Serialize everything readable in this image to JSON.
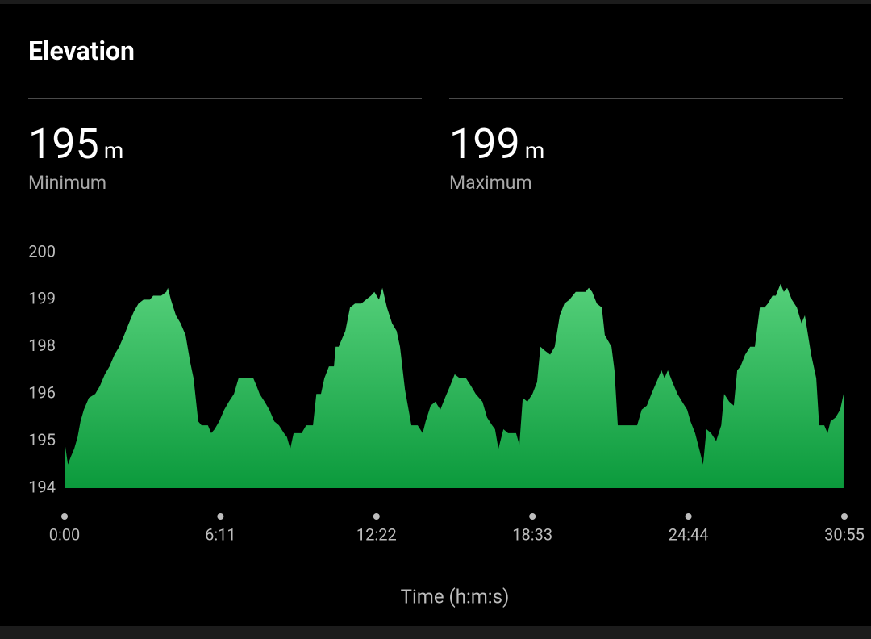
{
  "header": {
    "title": "Elevation"
  },
  "stats": [
    {
      "value": 195,
      "unit": "m",
      "label": "Minimum"
    },
    {
      "value": 199,
      "unit": "m",
      "label": "Maximum"
    }
  ],
  "chart_data": {
    "type": "area",
    "x_label": "Time (h:m:s)",
    "color": "#55d07a",
    "color_bottom": "#0b9a3c",
    "xlim": [
      0,
      1855
    ],
    "xticks": [
      {
        "value": 0,
        "label": "0:00"
      },
      {
        "value": 371,
        "label": "6:11"
      },
      {
        "value": 742,
        "label": "12:22"
      },
      {
        "value": 1113,
        "label": "18:33"
      },
      {
        "value": 1484,
        "label": "24:44"
      },
      {
        "value": 1855,
        "label": "30:55"
      }
    ],
    "ylim": [
      194,
      200
    ],
    "yticks": [
      194,
      {
        "value": 195.2,
        "label": "195"
      },
      {
        "value": 196.4,
        "label": "196"
      },
      {
        "value": 197.6,
        "label": "198"
      },
      {
        "value": 198.8,
        "label": "199"
      },
      200
    ],
    "x": [
      0,
      8,
      15,
      23,
      31,
      38,
      46,
      58,
      73,
      84,
      96,
      107,
      119,
      130,
      142,
      153,
      165,
      176,
      188,
      203,
      211,
      230,
      242,
      246,
      253,
      265,
      276,
      288,
      299,
      307,
      318,
      326,
      341,
      349,
      357,
      368,
      380,
      391,
      403,
      414,
      422,
      449,
      457,
      464,
      476,
      487,
      499,
      510,
      522,
      529,
      537,
      545,
      564,
      575,
      591,
      599,
      610,
      618,
      629,
      641,
      645,
      652,
      668,
      679,
      691,
      706,
      717,
      729,
      737,
      748,
      756,
      767,
      779,
      790,
      798,
      810,
      825,
      840,
      852,
      859,
      871,
      882,
      894,
      905,
      917,
      928,
      940,
      955,
      967,
      978,
      994,
      1005,
      1017,
      1024,
      1032,
      1044,
      1055,
      1074,
      1082,
      1090,
      1101,
      1113,
      1124,
      1132,
      1143,
      1155,
      1166,
      1178,
      1189,
      1201,
      1216,
      1228,
      1239,
      1247,
      1255,
      1266,
      1278,
      1285,
      1301,
      1308,
      1316,
      1331,
      1362,
      1373,
      1385,
      1396,
      1408,
      1420,
      1427,
      1435,
      1446,
      1458,
      1469,
      1481,
      1489,
      1500,
      1512,
      1519,
      1527,
      1538,
      1550,
      1562,
      1569,
      1581,
      1592,
      1600,
      1608,
      1619,
      1631,
      1642,
      1654,
      1665,
      1673,
      1684,
      1692,
      1703,
      1711,
      1719,
      1730,
      1742,
      1753,
      1761,
      1776,
      1788,
      1795,
      1807,
      1815,
      1822,
      1834,
      1845,
      1853
    ],
    "values": [
      195.2,
      194.6,
      194.8,
      195.0,
      195.3,
      195.7,
      196.0,
      196.3,
      196.4,
      196.6,
      196.9,
      197.1,
      197.4,
      197.6,
      197.9,
      198.2,
      198.5,
      198.7,
      198.8,
      198.8,
      198.9,
      198.9,
      199.0,
      199.1,
      198.8,
      198.4,
      198.2,
      197.9,
      197.2,
      196.8,
      195.7,
      195.6,
      195.6,
      195.4,
      195.5,
      195.7,
      196.0,
      196.2,
      196.4,
      196.8,
      196.8,
      196.8,
      196.6,
      196.4,
      196.2,
      196.0,
      195.7,
      195.6,
      195.4,
      195.3,
      195.0,
      195.4,
      195.4,
      195.6,
      195.6,
      196.4,
      196.4,
      196.8,
      197.1,
      197.1,
      197.6,
      197.6,
      198.0,
      198.6,
      198.7,
      198.7,
      198.8,
      198.9,
      199.0,
      198.8,
      199.1,
      198.6,
      198.2,
      198.0,
      197.6,
      196.5,
      195.6,
      195.6,
      195.4,
      195.7,
      196.1,
      196.2,
      196.0,
      196.3,
      196.6,
      196.9,
      196.8,
      196.8,
      196.6,
      196.4,
      196.2,
      195.8,
      195.6,
      195.5,
      195.0,
      195.5,
      195.4,
      195.4,
      195.1,
      196.3,
      196.2,
      196.4,
      196.7,
      197.6,
      197.5,
      197.4,
      197.6,
      198.4,
      198.7,
      198.8,
      199.0,
      199.0,
      199.0,
      199.1,
      199.0,
      198.7,
      198.6,
      197.9,
      197.6,
      197.0,
      195.6,
      195.6,
      195.6,
      196.0,
      196.1,
      196.4,
      196.7,
      197.0,
      196.8,
      197.0,
      196.7,
      196.4,
      196.2,
      196.0,
      195.7,
      195.4,
      194.9,
      194.6,
      195.5,
      195.4,
      195.2,
      195.6,
      196.4,
      196.2,
      196.1,
      197.0,
      197.1,
      197.4,
      197.6,
      197.6,
      198.6,
      198.6,
      198.7,
      198.9,
      198.9,
      199.2,
      199.0,
      199.1,
      198.8,
      198.6,
      198.2,
      198.4,
      197.4,
      196.8,
      195.6,
      195.6,
      195.4,
      195.7,
      195.8,
      196.0,
      196.4
    ]
  }
}
